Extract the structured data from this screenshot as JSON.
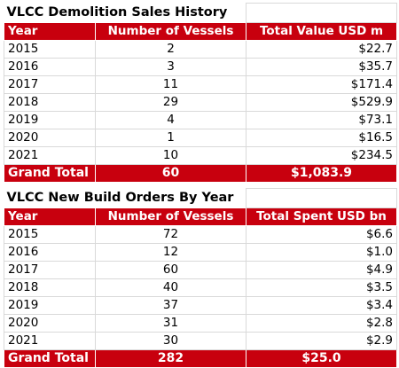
{
  "demolition": {
    "title": "VLCC Demolition Sales History",
    "headers": [
      "Year",
      "Number of Vessels",
      "Total Value USD m"
    ],
    "rows": [
      [
        "2015",
        "2",
        "$22.7"
      ],
      [
        "2016",
        "3",
        "$35.7"
      ],
      [
        "2017",
        "11",
        "$171.4"
      ],
      [
        "2018",
        "29",
        "$529.9"
      ],
      [
        "2019",
        "4",
        "$73.1"
      ],
      [
        "2020",
        "1",
        "$16.5"
      ],
      [
        "2021",
        "10",
        "$234.5"
      ]
    ],
    "total": [
      "Grand Total",
      "60",
      "$1,083.9"
    ]
  },
  "newbuild": {
    "title": "VLCC New Build Orders By Year",
    "headers": [
      "Year",
      "Number of Vessels",
      "Total Spent USD bn"
    ],
    "rows": [
      [
        "2015",
        "72",
        "$6.6"
      ],
      [
        "2016",
        "12",
        "$1.0"
      ],
      [
        "2017",
        "60",
        "$4.9"
      ],
      [
        "2018",
        "40",
        "$3.5"
      ],
      [
        "2019",
        "37",
        "$3.4"
      ],
      [
        "2020",
        "31",
        "$2.8"
      ],
      [
        "2021",
        "30",
        "$2.9"
      ]
    ],
    "total": [
      "Grand Total",
      "282",
      "$25.0"
    ]
  },
  "colors": {
    "header_bg": "#c8000e",
    "header_text": "#ffffff",
    "grid": "#d9d9d9"
  }
}
